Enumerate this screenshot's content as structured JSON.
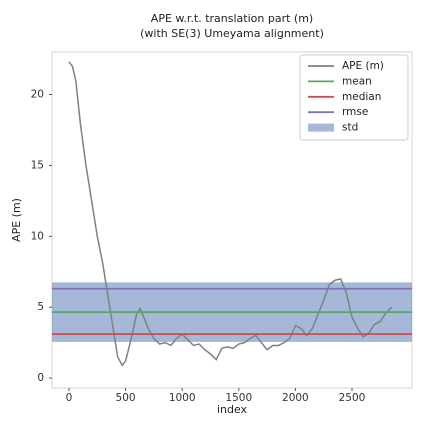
{
  "chart_data": {
    "type": "line",
    "title": [
      "APE w.r.t. translation part (m)",
      "(with SE(3) Umeyama alignment)"
    ],
    "xlabel": "index",
    "ylabel": "APE (m)",
    "xlim": [
      -150,
      3030
    ],
    "ylim": [
      -0.7,
      23
    ],
    "xticks": [
      0,
      500,
      1000,
      1500,
      2000,
      2500
    ],
    "yticks": [
      0,
      5,
      10,
      15,
      20
    ],
    "legend": "upper right",
    "series": [
      {
        "name": "APE (m)",
        "color": "#808080",
        "x": [
          0,
          30,
          60,
          100,
          150,
          200,
          250,
          300,
          350,
          400,
          430,
          470,
          500,
          550,
          600,
          630,
          660,
          700,
          750,
          800,
          850,
          900,
          950,
          1000,
          1050,
          1100,
          1150,
          1200,
          1250,
          1300,
          1350,
          1400,
          1450,
          1500,
          1550,
          1600,
          1650,
          1700,
          1750,
          1800,
          1850,
          1900,
          1950,
          2000,
          2050,
          2100,
          2150,
          2200,
          2250,
          2300,
          2350,
          2400,
          2450,
          2500,
          2550,
          2600,
          2650,
          2700,
          2750,
          2800,
          2850
        ],
        "values": [
          22.3,
          22.0,
          21.0,
          18.0,
          15.0,
          12.5,
          10.0,
          8.0,
          5.5,
          3.0,
          1.5,
          0.9,
          1.2,
          2.8,
          4.6,
          4.9,
          4.3,
          3.5,
          2.8,
          2.4,
          2.5,
          2.3,
          2.8,
          3.1,
          2.7,
          2.3,
          2.4,
          2.0,
          1.7,
          1.3,
          2.1,
          2.2,
          2.1,
          2.4,
          2.5,
          2.8,
          3.0,
          2.5,
          2.0,
          2.3,
          2.3,
          2.5,
          2.8,
          3.7,
          3.5,
          3.0,
          3.5,
          4.5,
          5.5,
          6.6,
          6.9,
          7.0,
          6.0,
          4.3,
          3.5,
          2.9,
          3.2,
          3.8,
          4.0,
          4.6,
          5.0
        ]
      }
    ],
    "stats": [
      {
        "name": "mean",
        "color": "#55a868",
        "value": 4.65
      },
      {
        "name": "median",
        "color": "#c44e52",
        "value": 3.1
      },
      {
        "name": "rmse",
        "color": "#8172b2",
        "value": 6.3
      }
    ],
    "std": {
      "name": "std",
      "color": "#4c72b0",
      "value": 2.1
    }
  }
}
